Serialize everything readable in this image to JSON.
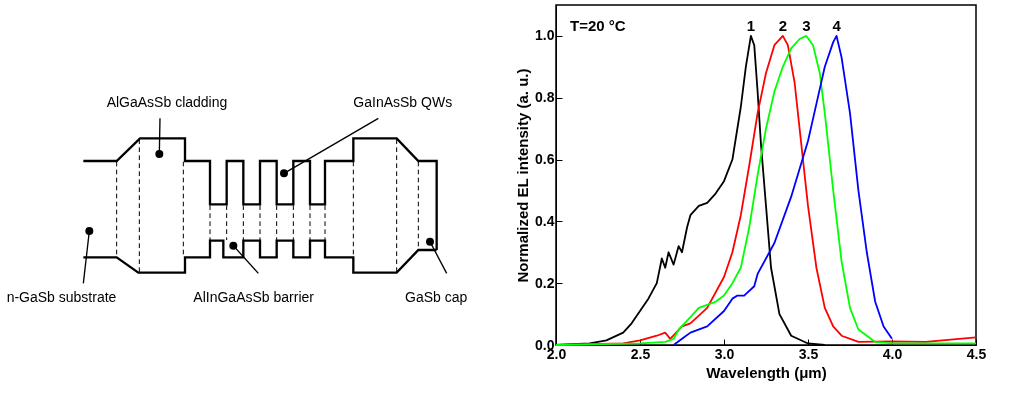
{
  "chart_data": {
    "type": "line",
    "xlabel": "Wavelength (μm)",
    "ylabel": "Normalized EL intensity (a. u.)",
    "annotations": [
      "AlGaAsSb cladding",
      "GaInAsSb QWs",
      "n-GaSb substrate",
      "AlInGaAsSb barrier",
      "GaSb cap",
      "T=20 °C"
    ],
    "xlim": [
      2.0,
      4.5
    ],
    "xticks": [
      {
        "value": 2,
        "label": "2.0"
      },
      2.5,
      {
        "value": 3,
        "label": "3.0"
      },
      3.5,
      {
        "value": 4,
        "label": "4.0"
      },
      4.5
    ],
    "ylim": [
      0,
      1.1
    ],
    "yticks": [
      {
        "value": 0,
        "label": "0.0"
      },
      0.2,
      0.4,
      0.6,
      0.8,
      {
        "value": 1,
        "label": "1.0"
      }
    ],
    "grid": false,
    "legend": false,
    "marker": "none",
    "line_style": "solid",
    "series": [
      {
        "name": "1",
        "color": "#000000",
        "x": [
          2.0,
          2.2,
          2.3,
          2.4,
          2.45,
          2.5,
          2.55,
          2.6,
          2.63,
          2.65,
          2.67,
          2.7,
          2.73,
          2.75,
          2.78,
          2.8,
          2.85,
          2.9,
          2.95,
          3.0,
          3.05,
          3.1,
          3.13,
          3.16,
          3.18,
          3.2,
          3.22,
          3.25,
          3.28,
          3.3,
          3.33,
          3.4,
          3.5,
          3.6
        ],
        "values": [
          0,
          0.005,
          0.015,
          0.04,
          0.07,
          0.11,
          0.15,
          0.2,
          0.28,
          0.25,
          0.3,
          0.26,
          0.32,
          0.3,
          0.38,
          0.42,
          0.45,
          0.46,
          0.49,
          0.53,
          0.6,
          0.77,
          0.9,
          1.0,
          0.97,
          0.82,
          0.65,
          0.45,
          0.25,
          0.19,
          0.1,
          0.03,
          0.005,
          0
        ]
      },
      {
        "name": "2",
        "color": "#ff0000",
        "x": [
          2.0,
          2.4,
          2.5,
          2.6,
          2.65,
          2.68,
          2.75,
          2.8,
          2.9,
          3.0,
          3.05,
          3.1,
          3.15,
          3.2,
          3.25,
          3.3,
          3.35,
          3.38,
          3.42,
          3.45,
          3.5,
          3.55,
          3.6,
          3.65,
          3.7,
          3.8,
          4.0,
          4.2,
          4.5
        ],
        "values": [
          0,
          0.005,
          0.015,
          0.03,
          0.04,
          0.02,
          0.06,
          0.07,
          0.12,
          0.22,
          0.3,
          0.42,
          0.58,
          0.75,
          0.88,
          0.97,
          1.0,
          0.97,
          0.85,
          0.7,
          0.45,
          0.25,
          0.12,
          0.06,
          0.03,
          0.01,
          0.012,
          0.01,
          0.025
        ]
      },
      {
        "name": "3",
        "color": "#00ff00",
        "x": [
          2.0,
          2.5,
          2.65,
          2.7,
          2.73,
          2.8,
          2.85,
          2.9,
          2.95,
          3.0,
          3.05,
          3.1,
          3.15,
          3.2,
          3.25,
          3.3,
          3.35,
          3.4,
          3.45,
          3.49,
          3.53,
          3.57,
          3.6,
          3.65,
          3.7,
          3.75,
          3.8,
          3.9,
          4.0,
          4.5
        ],
        "values": [
          0,
          0.005,
          0.01,
          0.02,
          0.05,
          0.09,
          0.12,
          0.13,
          0.14,
          0.16,
          0.2,
          0.25,
          0.38,
          0.55,
          0.7,
          0.82,
          0.9,
          0.96,
          0.99,
          1.0,
          0.97,
          0.88,
          0.75,
          0.5,
          0.27,
          0.12,
          0.05,
          0.01,
          0.005,
          0.005
        ]
      },
      {
        "name": "4",
        "color": "#0000ff",
        "x": [
          2.7,
          2.75,
          2.8,
          2.9,
          3.0,
          3.05,
          3.08,
          3.12,
          3.18,
          3.2,
          3.3,
          3.4,
          3.5,
          3.55,
          3.6,
          3.65,
          3.67,
          3.7,
          3.75,
          3.8,
          3.85,
          3.9,
          3.95,
          4.0
        ],
        "values": [
          0,
          0.02,
          0.04,
          0.06,
          0.11,
          0.15,
          0.16,
          0.16,
          0.19,
          0.23,
          0.33,
          0.48,
          0.66,
          0.78,
          0.9,
          0.98,
          1.0,
          0.93,
          0.75,
          0.5,
          0.3,
          0.14,
          0.06,
          0.02
        ]
      }
    ]
  }
}
